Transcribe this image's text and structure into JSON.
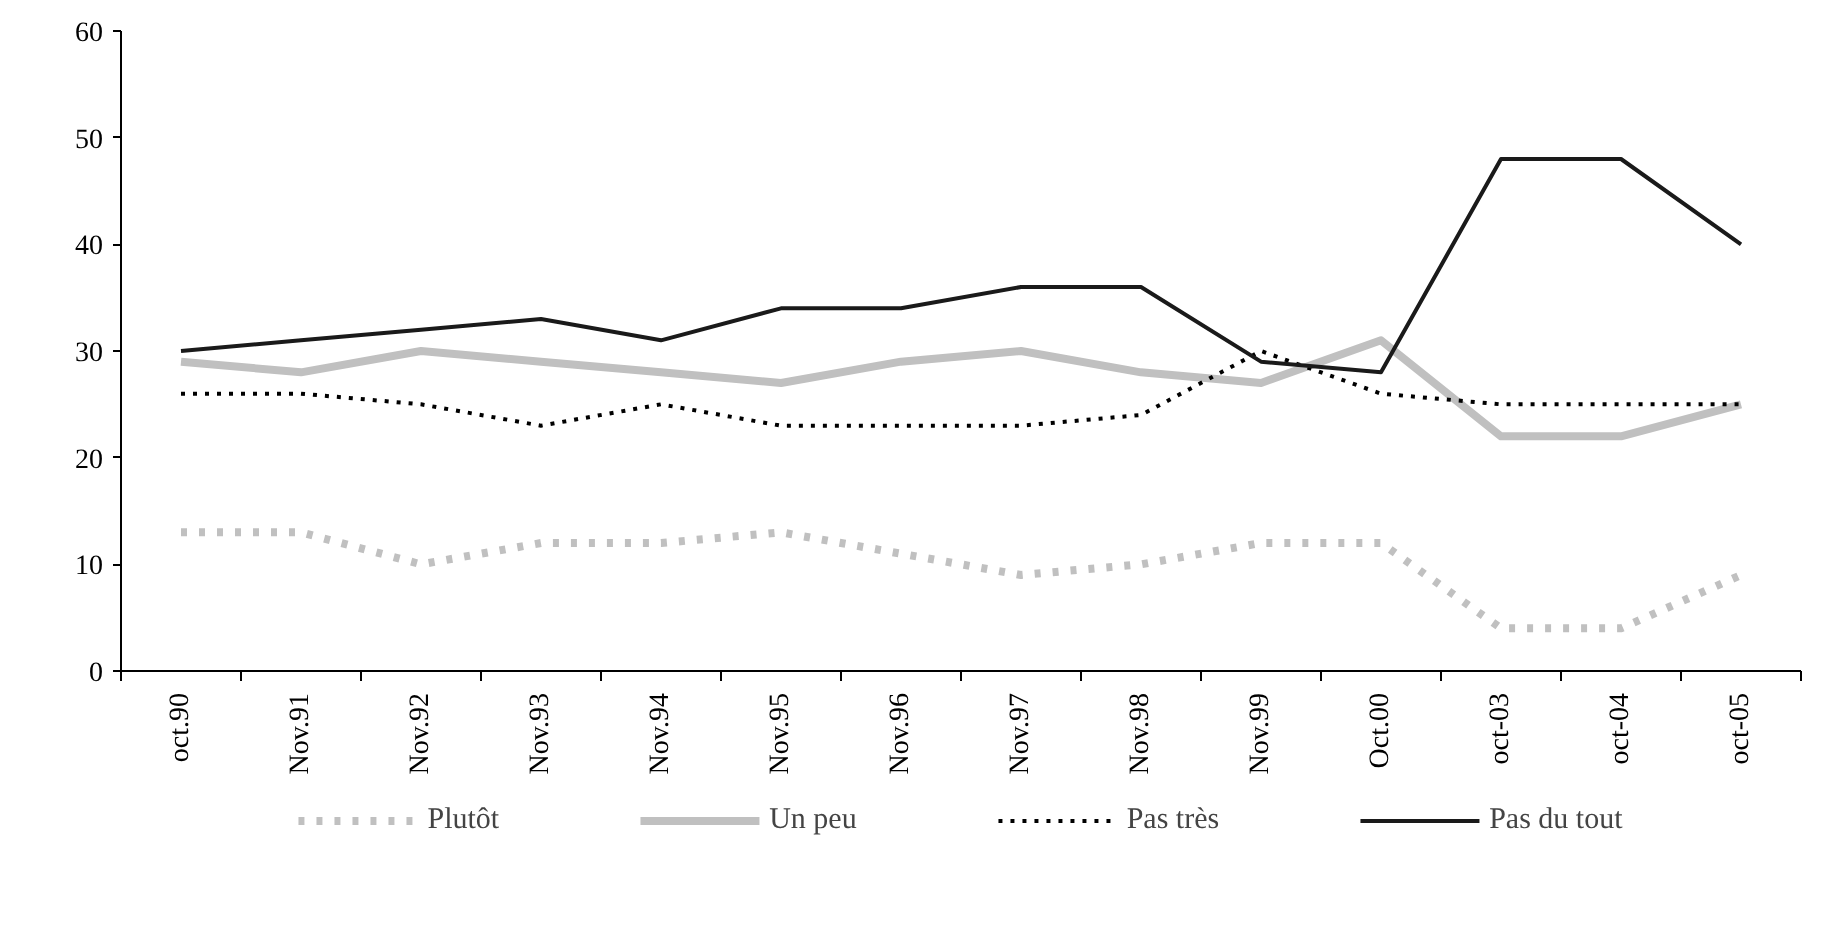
{
  "chart_data": {
    "type": "line",
    "categories": [
      "oct.90",
      "Nov.91",
      "Nov.92",
      "Nov.93",
      "Nov.94",
      "Nov.95",
      "Nov.96",
      "Nov.97",
      "Nov.98",
      "Nov.99",
      "Oct.00",
      "oct-03",
      "oct-04",
      "oct-05"
    ],
    "series": [
      {
        "name": "Plutôt",
        "color": "#c0c0c0",
        "line_style": "dotted",
        "values": [
          13,
          13,
          10,
          12,
          12,
          13,
          11,
          9,
          10,
          12,
          12,
          4,
          4,
          9
        ]
      },
      {
        "name": "Un peu",
        "color": "#c0c0c0",
        "line_style": "solid",
        "values": [
          29,
          28,
          30,
          29,
          28,
          27,
          29,
          30,
          28,
          27,
          31,
          22,
          22,
          25
        ]
      },
      {
        "name": "Pas très",
        "color": "#000000",
        "line_style": "dotted",
        "values": [
          26,
          26,
          25,
          23,
          25,
          23,
          23,
          23,
          24,
          30,
          26,
          25,
          25,
          25
        ]
      },
      {
        "name": "Pas du tout",
        "color": "#1a1a1a",
        "line_style": "solid",
        "values": [
          30,
          31,
          32,
          33,
          31,
          34,
          34,
          36,
          36,
          29,
          28,
          48,
          48,
          40
        ]
      }
    ],
    "ylim": [
      0,
      60
    ],
    "yticks": [
      0,
      10,
      20,
      30,
      40,
      50,
      60
    ],
    "grid": false,
    "legend": "bottom",
    "marker": "none"
  }
}
